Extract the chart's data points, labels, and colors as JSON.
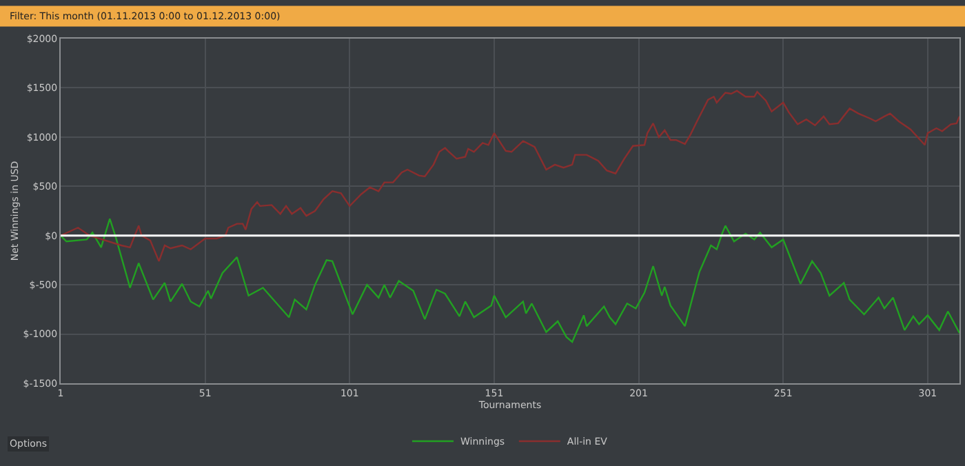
{
  "chart_data": {
    "type": "line",
    "title": "Filter: This month (01.11.2013 0:00 to 01.12.2013 0:00)",
    "xlabel": "Tournaments",
    "ylabel": "Net Winnings in USD",
    "xlim": [
      1,
      312
    ],
    "xticks": [
      1,
      51,
      101,
      151,
      201,
      251,
      301
    ],
    "ylim": [
      -1500,
      2000
    ],
    "yticks": [
      {
        "value": -1500,
        "label": "$-1500"
      },
      {
        "value": -1000,
        "label": "$-1000"
      },
      {
        "value": -500,
        "label": "$-500"
      },
      {
        "value": 0,
        "label": "$0"
      },
      {
        "value": 500,
        "label": "$500"
      },
      {
        "value": 1000,
        "label": "$1000"
      },
      {
        "value": 1500,
        "label": "$1500"
      },
      {
        "value": 2000,
        "label": "$2000"
      }
    ],
    "grid": true,
    "legend": "bottom",
    "marker": "none",
    "line_style": "solid",
    "ref_lines": [
      {
        "axis": "y",
        "value": 0,
        "label": null,
        "color": "#ffffff"
      }
    ],
    "annotations": [
      "Options"
    ],
    "series": [
      {
        "name": "Winnings",
        "color": "#22a022",
        "x": [
          1,
          3,
          10,
          12,
          15,
          18,
          20,
          25,
          28,
          33,
          37,
          39,
          43,
          46,
          49,
          52,
          53,
          57,
          62,
          66,
          71,
          77,
          80,
          82,
          86,
          89,
          93,
          95,
          102,
          107,
          111,
          113,
          115,
          118,
          123,
          127,
          131,
          134,
          139,
          141,
          144,
          150,
          151,
          155,
          161,
          162,
          164,
          169,
          173,
          176,
          178,
          182,
          183,
          189,
          191,
          193,
          197,
          200,
          203,
          206,
          209,
          210,
          212,
          217,
          222,
          226,
          228,
          230,
          231,
          234,
          238,
          241,
          243,
          247,
          251,
          257,
          261,
          264,
          267,
          272,
          274,
          279,
          284,
          286,
          289,
          293,
          296,
          298,
          301,
          305,
          308,
          312
        ],
        "values": [
          0,
          -60,
          -40,
          30,
          -120,
          170,
          -10,
          -530,
          -280,
          -650,
          -480,
          -670,
          -490,
          -670,
          -720,
          -560,
          -640,
          -380,
          -220,
          -610,
          -530,
          -730,
          -830,
          -650,
          -750,
          -500,
          -250,
          -260,
          -800,
          -500,
          -630,
          -500,
          -630,
          -460,
          -560,
          -850,
          -550,
          -590,
          -820,
          -670,
          -830,
          -710,
          -610,
          -830,
          -670,
          -790,
          -690,
          -980,
          -870,
          -1030,
          -1080,
          -810,
          -920,
          -720,
          -830,
          -900,
          -690,
          -740,
          -580,
          -310,
          -610,
          -520,
          -710,
          -920,
          -370,
          -100,
          -140,
          30,
          100,
          -60,
          20,
          -40,
          30,
          -120,
          -40,
          -490,
          -260,
          -380,
          -610,
          -480,
          -650,
          -800,
          -630,
          -740,
          -630,
          -960,
          -820,
          -900,
          -810,
          -960,
          -770,
          -990
        ]
      },
      {
        "name": "All-in EV",
        "color": "#8a2e2e",
        "x": [
          1,
          7,
          11,
          22,
          25,
          28,
          29,
          32,
          35,
          37,
          39,
          43,
          46,
          51,
          55,
          58,
          59,
          62,
          64,
          65,
          67,
          69,
          70,
          74,
          77,
          79,
          81,
          84,
          86,
          89,
          92,
          95,
          98,
          101,
          105,
          108,
          111,
          113,
          116,
          119,
          121,
          125,
          127,
          130,
          132,
          134,
          135,
          138,
          141,
          142,
          144,
          147,
          149,
          151,
          155,
          157,
          161,
          165,
          169,
          172,
          175,
          178,
          179,
          183,
          187,
          190,
          193,
          196,
          199,
          203,
          204,
          206,
          208,
          210,
          212,
          214,
          217,
          219,
          221,
          225,
          227,
          228,
          231,
          233,
          235,
          238,
          241,
          242,
          245,
          247,
          251,
          253,
          256,
          259,
          262,
          265,
          267,
          270,
          274,
          277,
          281,
          283,
          286,
          288,
          291,
          295,
          300,
          301,
          304,
          306,
          309,
          311,
          312
        ],
        "values": [
          0,
          80,
          0,
          -100,
          -120,
          100,
          0,
          -50,
          -260,
          -100,
          -130,
          -100,
          -140,
          -30,
          -30,
          0,
          80,
          120,
          120,
          60,
          270,
          340,
          300,
          310,
          220,
          300,
          220,
          280,
          200,
          250,
          370,
          450,
          430,
          300,
          420,
          490,
          450,
          540,
          540,
          640,
          670,
          610,
          600,
          720,
          850,
          890,
          860,
          780,
          800,
          880,
          850,
          940,
          920,
          1040,
          860,
          850,
          960,
          900,
          670,
          720,
          690,
          720,
          820,
          820,
          760,
          660,
          630,
          780,
          910,
          920,
          1040,
          1140,
          1000,
          1070,
          970,
          970,
          930,
          1030,
          1150,
          1380,
          1410,
          1350,
          1450,
          1440,
          1470,
          1410,
          1410,
          1460,
          1370,
          1260,
          1350,
          1250,
          1130,
          1180,
          1120,
          1210,
          1130,
          1140,
          1290,
          1240,
          1190,
          1160,
          1210,
          1240,
          1160,
          1080,
          920,
          1040,
          1090,
          1060,
          1130,
          1140,
          1210
        ]
      }
    ]
  }
}
